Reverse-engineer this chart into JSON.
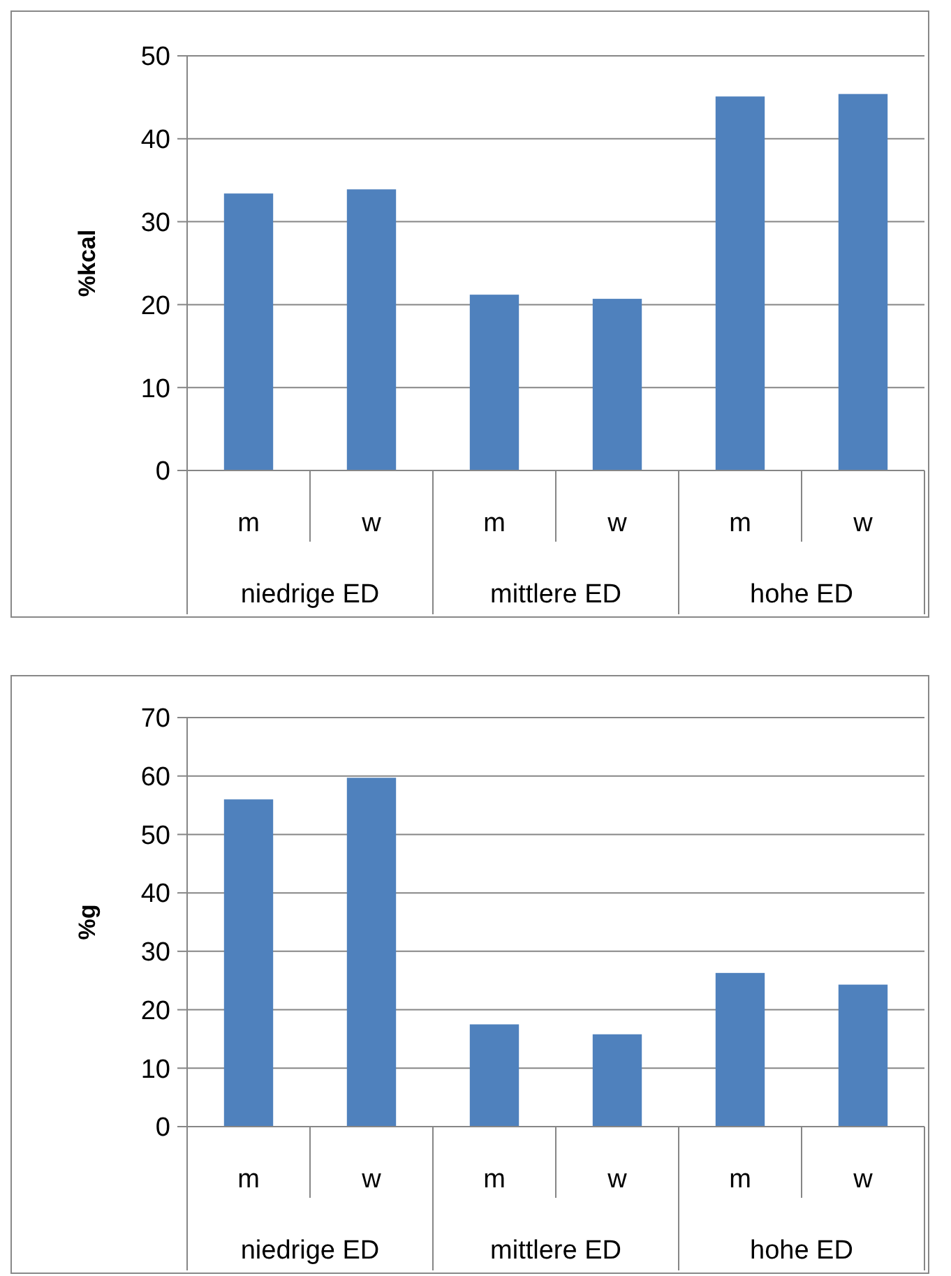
{
  "chart_data": [
    {
      "type": "bar",
      "ylabel": "%kcal",
      "categories": [
        "m",
        "w",
        "m",
        "w",
        "m",
        "w"
      ],
      "values": [
        33.4,
        33.9,
        21.2,
        20.7,
        45.1,
        45.4
      ],
      "color": "#4f81bd",
      "ylim": [
        0,
        50
      ],
      "yticks": [
        0,
        10,
        20,
        30,
        40,
        50
      ],
      "grid": "y",
      "annotations": [
        "niedrige ED",
        "mittlere ED",
        "hohe ED"
      ]
    },
    {
      "type": "bar",
      "ylabel": "%g",
      "categories": [
        "m",
        "w",
        "m",
        "w",
        "m",
        "w"
      ],
      "values": [
        56,
        59.7,
        17.5,
        15.8,
        26.3,
        24.3
      ],
      "color": "#4f81bd",
      "ylim": [
        0,
        70
      ],
      "yticks": [
        0,
        10,
        20,
        30,
        40,
        50,
        60,
        70
      ],
      "grid": "y",
      "annotations": [
        "niedrige ED",
        "mittlere ED",
        "hohe ED"
      ]
    }
  ]
}
